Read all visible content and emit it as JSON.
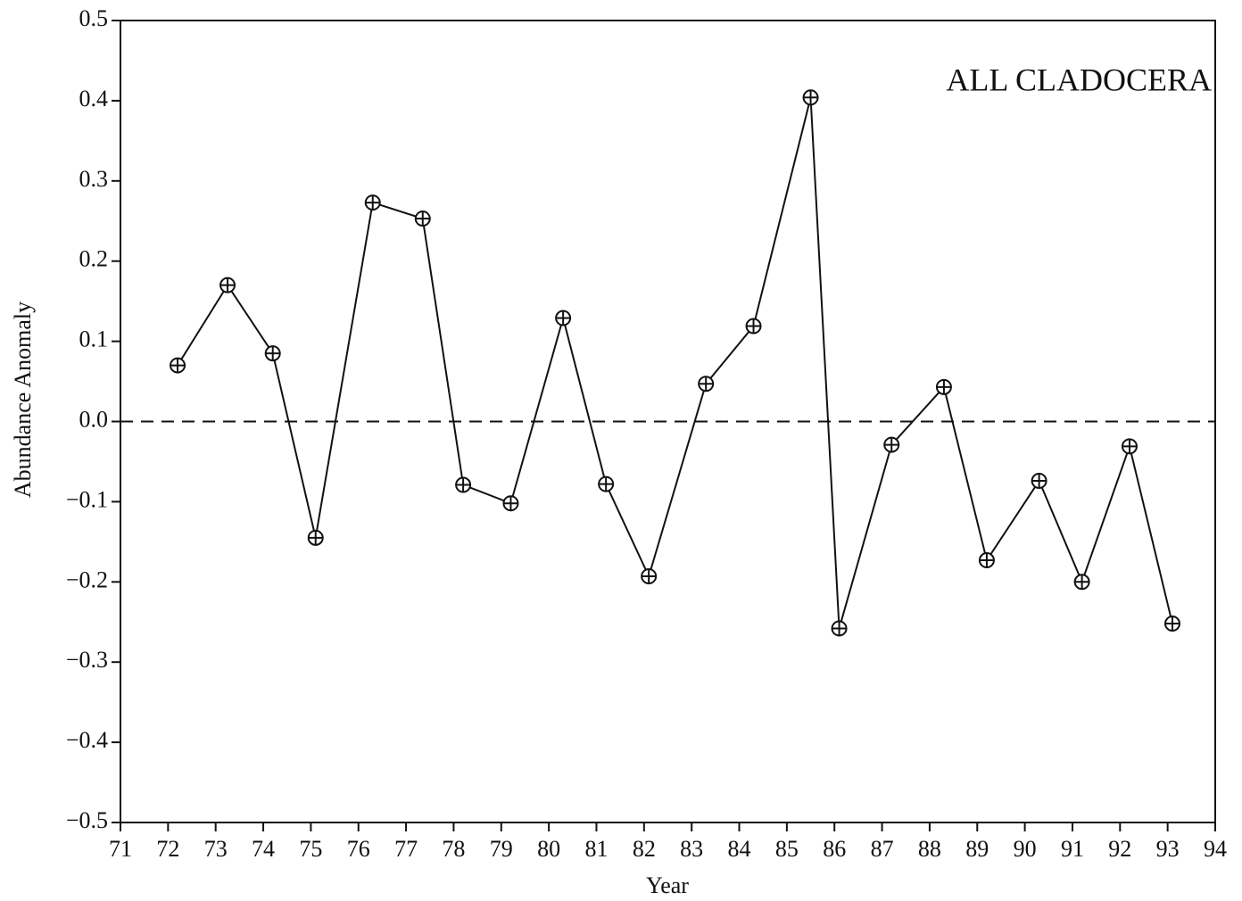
{
  "chart_data": {
    "type": "line",
    "title": "ALL CLADOCERA",
    "x_label": "Year",
    "y_label": "Abundance Anomaly",
    "x": [
      72.2,
      73.25,
      74.2,
      75.1,
      76.3,
      77.35,
      78.2,
      79.2,
      80.3,
      81.2,
      82.1,
      83.3,
      84.3,
      85.5,
      86.1,
      87.2,
      88.3,
      89.2,
      90.3,
      91.2,
      92.2,
      93.1
    ],
    "series": [
      {
        "color": "#111111",
        "values": [
          0.07,
          0.17,
          0.085,
          -0.145,
          0.273,
          0.253,
          -0.079,
          -0.102,
          0.129,
          -0.078,
          -0.193,
          0.047,
          0.119,
          0.404,
          -0.258,
          -0.029,
          0.043,
          -0.173,
          -0.074,
          -0.2,
          -0.031,
          -0.252
        ]
      }
    ],
    "reference_line": 0,
    "xlim": [
      71,
      94
    ],
    "xticks": [
      71,
      72,
      73,
      74,
      75,
      76,
      77,
      78,
      79,
      80,
      81,
      82,
      83,
      84,
      85,
      86,
      87,
      88,
      89,
      90,
      91,
      92,
      93,
      94
    ],
    "ylim": [
      -0.5,
      0.5
    ],
    "yticks": [
      {
        "value": -0.5,
        "label": "−0.5"
      },
      {
        "value": -0.4,
        "label": "−0.4"
      },
      {
        "value": -0.3,
        "label": "−0.3"
      },
      {
        "value": -0.2,
        "label": "−0.2"
      },
      {
        "value": -0.1,
        "label": "−0.1"
      },
      {
        "value": 0,
        "label": "0.0"
      },
      0.1,
      0.2,
      0.3,
      0.4,
      0.5
    ],
    "grid": false
  }
}
